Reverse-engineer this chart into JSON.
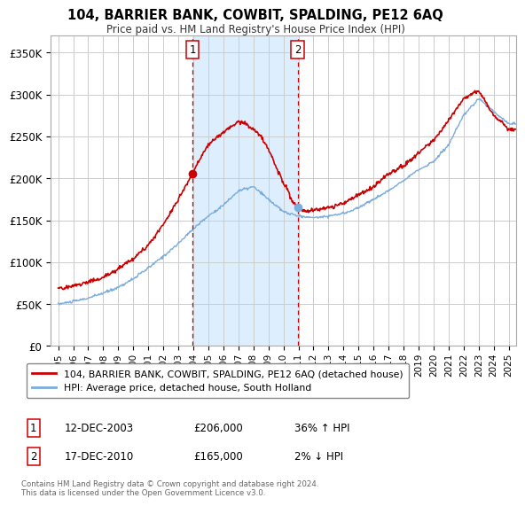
{
  "title": "104, BARRIER BANK, COWBIT, SPALDING, PE12 6AQ",
  "subtitle": "Price paid vs. HM Land Registry's House Price Index (HPI)",
  "ylabel_ticks": [
    "£0",
    "£50K",
    "£100K",
    "£150K",
    "£200K",
    "£250K",
    "£300K",
    "£350K"
  ],
  "ytick_vals": [
    0,
    50000,
    100000,
    150000,
    200000,
    250000,
    300000,
    350000
  ],
  "ylim": [
    0,
    370000
  ],
  "xlim_start": 1994.5,
  "xlim_end": 2025.5,
  "legend_line1": "104, BARRIER BANK, COWBIT, SPALDING, PE12 6AQ (detached house)",
  "legend_line2": "HPI: Average price, detached house, South Holland",
  "marker1_date": "12-DEC-2003",
  "marker1_price": "£206,000",
  "marker1_hpi": "36% ↑ HPI",
  "marker1_x": 2003.95,
  "marker1_y": 206000,
  "marker2_date": "17-DEC-2010",
  "marker2_price": "£165,000",
  "marker2_hpi": "2% ↓ HPI",
  "marker2_x": 2010.95,
  "marker2_y": 165000,
  "vline1_x": 2003.95,
  "vline2_x": 2010.95,
  "shade_xmin": 2003.95,
  "shade_xmax": 2010.95,
  "copyright_text": "Contains HM Land Registry data © Crown copyright and database right 2024.\nThis data is licensed under the Open Government Licence v3.0.",
  "line_color_red": "#cc0000",
  "line_color_blue": "#7aaddc",
  "shade_color": "#ddeeff",
  "vline_color": "#cc0000",
  "grid_color": "#cccccc",
  "background_color": "#ffffff"
}
